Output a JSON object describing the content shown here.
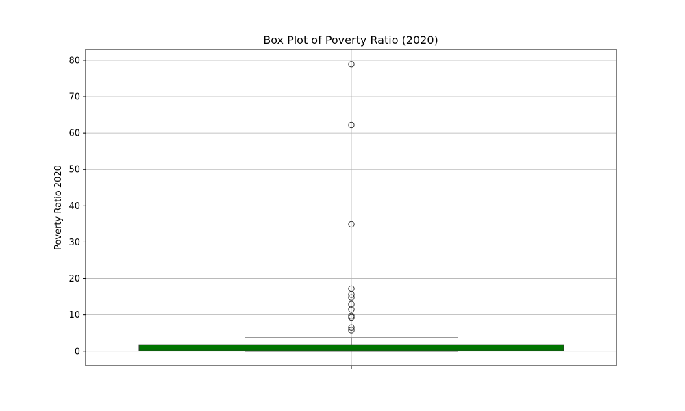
{
  "chart_data": {
    "type": "box",
    "title": "Box Plot of Poverty Ratio (2020)",
    "xlabel": "",
    "ylabel": "Poverty Ratio 2020",
    "ylim": [
      -4,
      83
    ],
    "yticks": [
      0,
      10,
      20,
      30,
      40,
      50,
      60,
      70,
      80
    ],
    "grid": true,
    "box": {
      "q1": 0.1,
      "median": 0.6,
      "q3": 1.8,
      "whisker_low": 0.0,
      "whisker_high": 3.7,
      "fill_color": "#007500",
      "outliers": [
        5.8,
        6.5,
        9.3,
        9.7,
        11.5,
        12.9,
        14.8,
        15.6,
        17.2,
        34.9,
        62.2,
        78.9
      ]
    }
  }
}
